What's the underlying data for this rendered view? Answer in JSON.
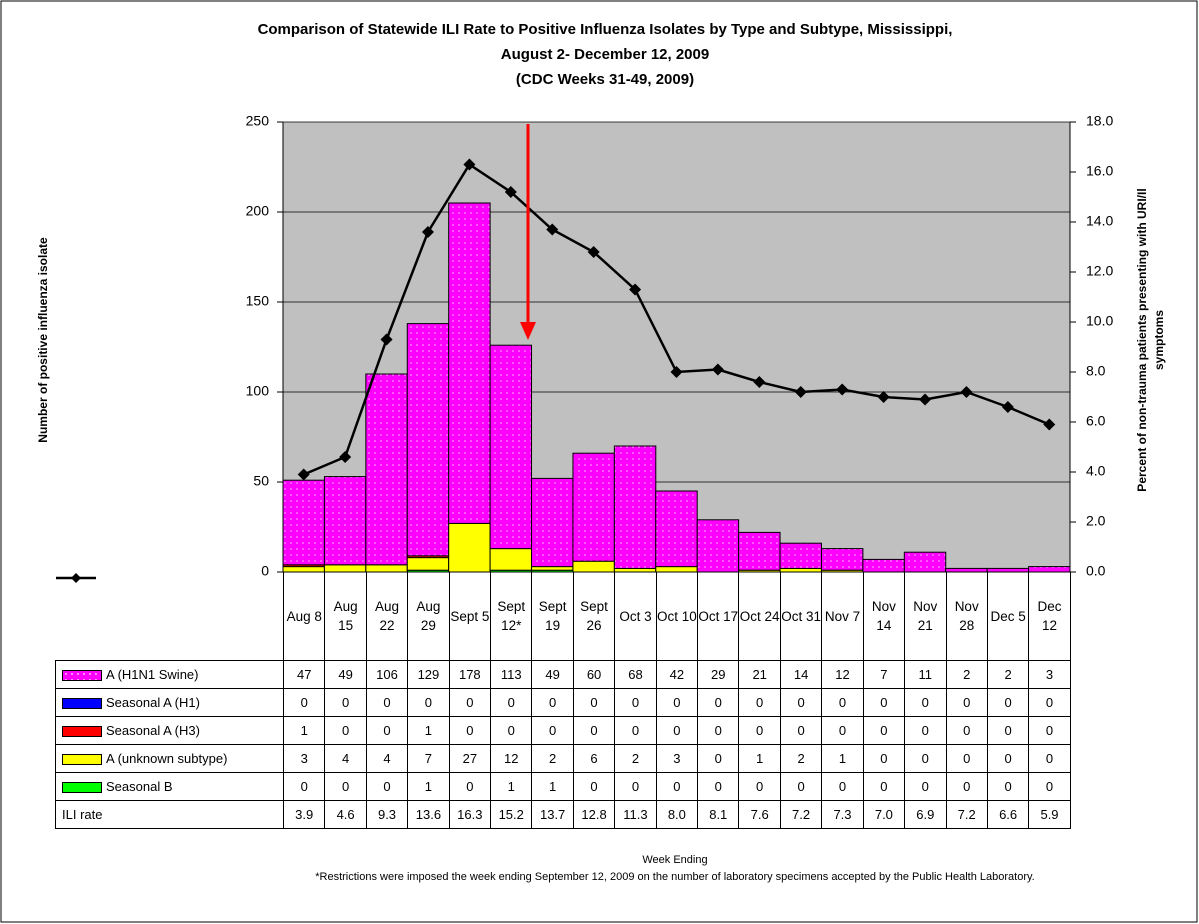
{
  "chart_data": {
    "type": "bar",
    "title": [
      "Comparison of Statewide ILI Rate to Positive Influenza Isolates by Type and Subtype, Mississippi,",
      "August 2- December 12, 2009",
      "(CDC Weeks 31-49, 2009)"
    ],
    "ylabel": "Number of positive influenza isolate",
    "y2label": [
      "Percent of non-trauma patients presenting with URI/Il",
      "symptoms"
    ],
    "xlabel": "Week Ending",
    "note": "*Restrictions were imposed the week ending September 12, 2009 on the number of laboratory specimens accepted by the Public Health Laboratory.",
    "categories": [
      "Aug 8",
      "Aug 15",
      "Aug 22",
      "Aug 29",
      "Sept 5",
      "Sept 12*",
      "Sept 19",
      "Sept 26",
      "Oct 3",
      "Oct 10",
      "Oct 17",
      "Oct 24",
      "Oct 31",
      "Nov 7",
      "Nov 14",
      "Nov 21",
      "Nov 28",
      "Dec 5",
      "Dec 12"
    ],
    "series": [
      {
        "name": "A (H1N1 Swine)",
        "color": "#ff00ff",
        "values": [
          47,
          49,
          106,
          129,
          178,
          113,
          49,
          60,
          68,
          42,
          29,
          21,
          14,
          12,
          7,
          11,
          2,
          2,
          3
        ]
      },
      {
        "name": "Seasonal A (H1)",
        "color": "#0000ff",
        "values": [
          0,
          0,
          0,
          0,
          0,
          0,
          0,
          0,
          0,
          0,
          0,
          0,
          0,
          0,
          0,
          0,
          0,
          0,
          0
        ]
      },
      {
        "name": "Seasonal A (H3)",
        "color": "#ff0000",
        "values": [
          1,
          0,
          0,
          1,
          0,
          0,
          0,
          0,
          0,
          0,
          0,
          0,
          0,
          0,
          0,
          0,
          0,
          0,
          0
        ]
      },
      {
        "name": "A (unknown subtype)",
        "color": "#ffff00",
        "values": [
          3,
          4,
          4,
          7,
          27,
          12,
          2,
          6,
          2,
          3,
          0,
          1,
          2,
          1,
          0,
          0,
          0,
          0,
          0
        ]
      },
      {
        "name": "Seasonal B",
        "color": "#00ff00",
        "values": [
          0,
          0,
          0,
          1,
          0,
          1,
          1,
          0,
          0,
          0,
          0,
          0,
          0,
          0,
          0,
          0,
          0,
          0,
          0
        ]
      },
      {
        "name": "ILI rate",
        "color": "#000000",
        "type": "line",
        "axis": "y2",
        "values": [
          3.9,
          4.6,
          9.3,
          13.6,
          16.3,
          15.2,
          13.7,
          12.8,
          11.3,
          8.0,
          8.1,
          7.6,
          7.2,
          7.3,
          7.0,
          6.9,
          7.2,
          6.6,
          5.9
        ],
        "value_labels": [
          "3.9",
          "4.6",
          "9.3",
          "13.6",
          "16.3",
          "15.2",
          "13.7",
          "12.8",
          "11.3",
          "8.0",
          "8.1",
          "7.6",
          "7.2",
          "7.3",
          "7.0",
          "6.9",
          "7.2",
          "6.6",
          "5.9"
        ]
      }
    ],
    "ylim": [
      0,
      250
    ],
    "yticks": [
      0,
      50,
      100,
      150,
      200,
      250
    ],
    "y2lim": [
      0,
      18
    ],
    "y2ticks": [
      {
        "value": 0,
        "label": "0.0"
      },
      {
        "value": 2,
        "label": "2.0"
      },
      {
        "value": 4,
        "label": "4.0"
      },
      {
        "value": 6,
        "label": "6.0"
      },
      {
        "value": 8,
        "label": "8.0"
      },
      {
        "value": 10,
        "label": "10.0"
      },
      {
        "value": 12,
        "label": "12.0"
      },
      {
        "value": 14,
        "label": "14.0"
      },
      {
        "value": 16,
        "label": "16.0"
      },
      {
        "value": 18,
        "label": "18.0"
      }
    ],
    "grid": true
  }
}
